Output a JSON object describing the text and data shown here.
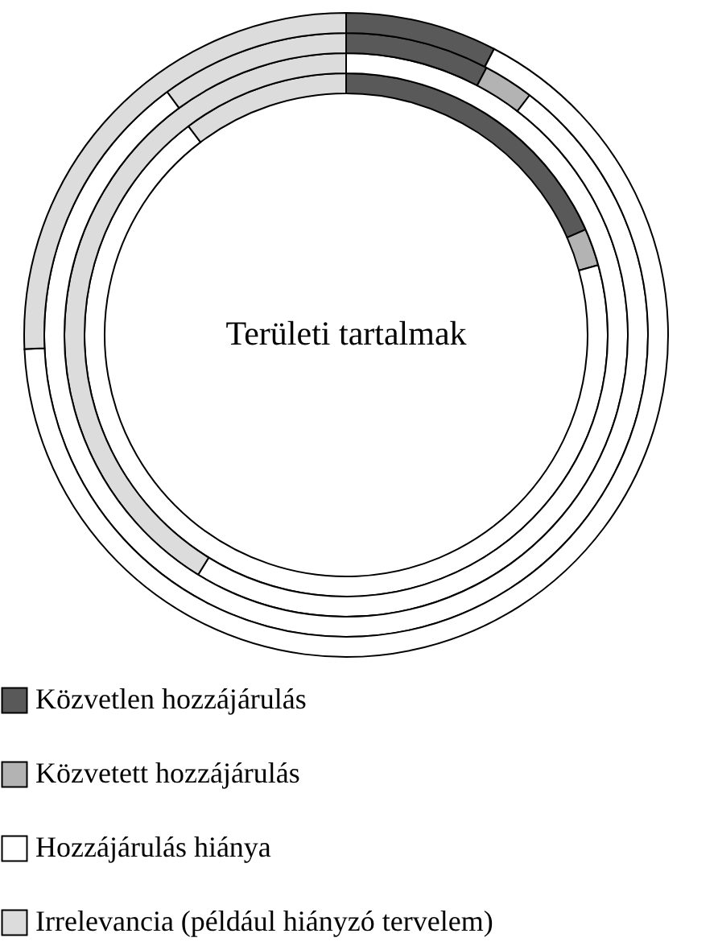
{
  "chart_data": {
    "type": "donut",
    "categories": [
      "Közvetlen hozzájárulás",
      "Közvetett hozzájárulás",
      "Hozzájárulás hiánya",
      "Irrelevancia (például hiányzó tervelem)"
    ],
    "colors": [
      "#595959",
      "#b3b3b3",
      "#ffffff",
      "#dcdcdc"
    ],
    "series": [
      {
        "values": [
          18.4,
          2.3,
          69.0,
          10.3
        ]
      },
      {
        "values": [
          0,
          0,
          58.8,
          41.2
        ]
      },
      {
        "values": [
          7.7,
          2.7,
          79.5,
          10.1
        ]
      },
      {
        "values": [
          7.6,
          0,
          66.7,
          25.7
        ]
      }
    ],
    "annotations": [
      "Területi tartalmak"
    ],
    "legend": "bottom left"
  }
}
